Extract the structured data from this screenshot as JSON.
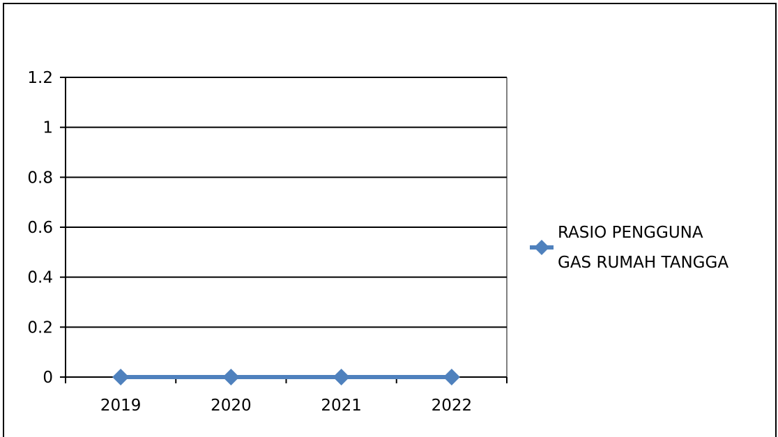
{
  "chart_data": {
    "type": "line",
    "title": "",
    "xlabel": "",
    "ylabel": "",
    "categories": [
      "2019",
      "2020",
      "2021",
      "2022"
    ],
    "ylim": [
      0,
      1.2
    ],
    "yticks": [
      "0",
      "0.2",
      "0.4",
      "0.6",
      "0.8",
      "1",
      "1.2"
    ],
    "grid": true,
    "legend_position": "right",
    "series": [
      {
        "name": "RASIO PENGGUNA GAS RUMAH TANGGA",
        "name_lines": [
          "RASIO PENGGUNA",
          "GAS RUMAH TANGGA"
        ],
        "values": [
          0,
          0,
          0,
          0
        ],
        "color": "#4F81BD",
        "marker": "diamond"
      }
    ]
  }
}
